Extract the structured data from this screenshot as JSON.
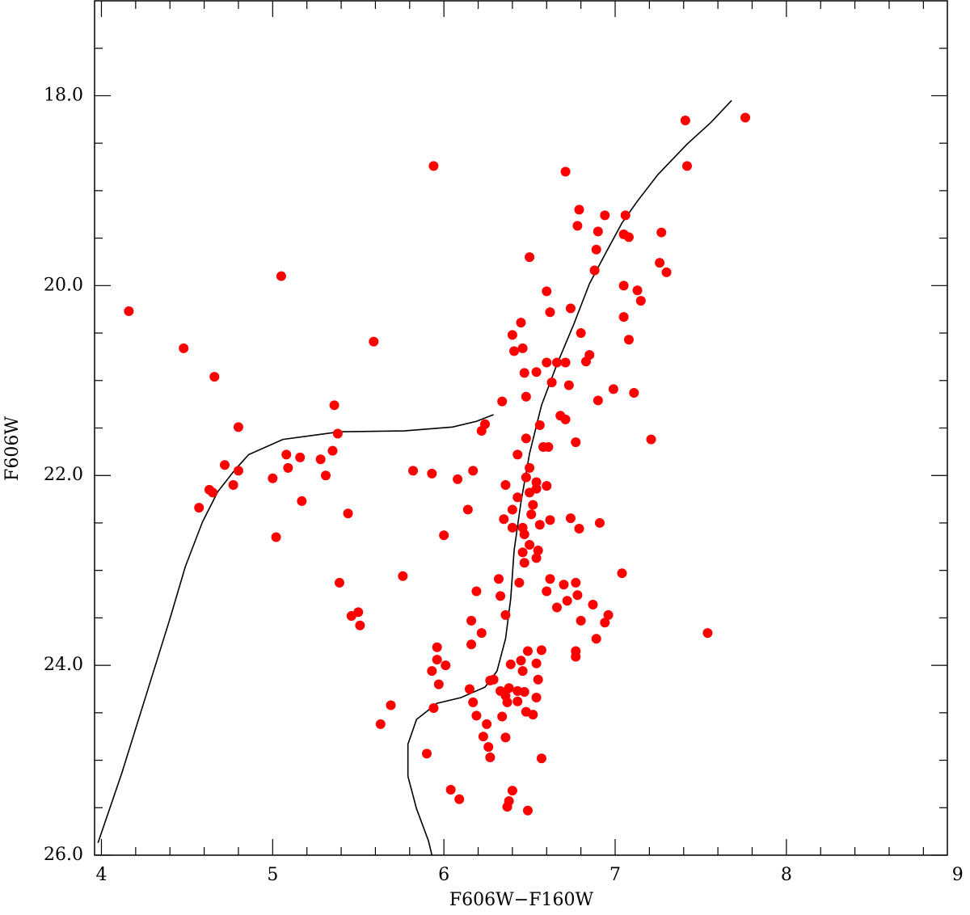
{
  "chart_data": {
    "type": "scatter",
    "xlabel": "F606W−F160W",
    "ylabel": "F606W",
    "xlim": [
      3.96,
      8.94
    ],
    "ylim": [
      26,
      17
    ],
    "xticks": [
      4,
      5,
      6,
      7,
      8,
      9
    ],
    "yticks": [
      {
        "value": 18,
        "label": "18.0"
      },
      {
        "value": 20,
        "label": "20.0"
      },
      {
        "value": 22,
        "label": "22.0"
      },
      {
        "value": 24,
        "label": "24.0"
      },
      {
        "value": 26,
        "label": "26.0"
      }
    ],
    "xminor": [
      4.2,
      4.4,
      4.6,
      4.8,
      5.2,
      5.4,
      5.6,
      5.8,
      6.2,
      6.4,
      6.6,
      6.8,
      7.2,
      7.4,
      7.6,
      7.8,
      8.2,
      8.4,
      8.6,
      8.8
    ],
    "yminor": [
      17.5,
      18.5,
      19,
      19.5,
      20.5,
      21,
      21.5,
      22.5,
      23,
      23.5,
      24.5,
      25,
      25.5
    ],
    "points": {
      "color": "#ff0000",
      "x": [
        4.16,
        4.48,
        4.66,
        5.05,
        5.59,
        5.94,
        7.41,
        7.76,
        7.42,
        6.71,
        6.79,
        6.94,
        7.06,
        6.78,
        6.9,
        7.05,
        7.08,
        7.27,
        6.89,
        6.5,
        6.88,
        7.26,
        7.3,
        7.05,
        7.13,
        7.15,
        6.6,
        6.74,
        6.62,
        6.45,
        7.05,
        6.8,
        6.4,
        6.46,
        6.41,
        7.08,
        6.85,
        6.83,
        6.6,
        6.71,
        6.66,
        6.54,
        6.47,
        6.63,
        6.73,
        6.99,
        7.11,
        6.48,
        6.9,
        6.34,
        5.36,
        4.8,
        6.56,
        6.68,
        6.71,
        6.24,
        6.22,
        5.38,
        6.77,
        6.48,
        6.61,
        6.58,
        7.21,
        5.35,
        6.43,
        5.08,
        5.16,
        5.28,
        4.72,
        4.8,
        5.09,
        5.0,
        5.31,
        4.77,
        4.63,
        4.65,
        4.57,
        5.17,
        5.02,
        5.44,
        5.39,
        5.46,
        5.5,
        5.51,
        5.76,
        5.69,
        5.63,
        5.82,
        5.93,
        6.08,
        6.17,
        6.14,
        6.0,
        6.36,
        6.48,
        6.43,
        6.54,
        6.5,
        6.6,
        6.4,
        6.52,
        6.51,
        6.35,
        6.46,
        6.47,
        6.56,
        6.62,
        6.74,
        6.79,
        6.91,
        6.5,
        6.55,
        6.46,
        6.47,
        6.54,
        6.4,
        6.32,
        6.44,
        6.62,
        6.6,
        6.66,
        6.7,
        6.77,
        6.78,
        6.72,
        6.87,
        6.96,
        6.94,
        6.89,
        6.8,
        7.04,
        7.54,
        6.19,
        6.33,
        6.16,
        6.22,
        6.36,
        6.16,
        5.96,
        5.93,
        5.97,
        5.96,
        6.01,
        5.94,
        5.9,
        6.04,
        6.09,
        6.15,
        6.17,
        6.19,
        6.25,
        6.23,
        6.27,
        6.27,
        6.33,
        6.37,
        6.39,
        6.45,
        6.49,
        6.57,
        6.43,
        6.46,
        6.47,
        6.48,
        6.52,
        6.54,
        6.55,
        6.54,
        6.77,
        6.77,
        6.57,
        6.36,
        6.38,
        6.34,
        6.36,
        6.4,
        6.38,
        6.37,
        6.49,
        6.43,
        6.29,
        6.26,
        6.5,
        6.54
      ],
      "y": [
        20.27,
        20.66,
        20.96,
        19.9,
        20.59,
        18.74,
        18.26,
        18.23,
        18.74,
        18.8,
        19.2,
        19.26,
        19.26,
        19.37,
        19.43,
        19.46,
        19.49,
        19.44,
        19.62,
        19.7,
        19.84,
        19.76,
        19.86,
        20.0,
        20.05,
        20.16,
        20.06,
        20.24,
        20.28,
        20.39,
        20.33,
        20.5,
        20.52,
        20.66,
        20.69,
        20.57,
        20.73,
        20.8,
        20.81,
        20.81,
        20.81,
        20.91,
        20.92,
        21.02,
        21.05,
        21.09,
        21.13,
        21.17,
        21.21,
        21.22,
        21.26,
        21.49,
        21.47,
        21.37,
        21.41,
        21.46,
        21.53,
        21.56,
        21.65,
        21.61,
        21.7,
        21.7,
        21.62,
        21.74,
        21.78,
        21.78,
        21.81,
        21.83,
        21.89,
        21.95,
        21.92,
        22.03,
        22.0,
        22.1,
        22.15,
        22.18,
        22.34,
        22.27,
        22.65,
        22.4,
        23.13,
        23.48,
        23.44,
        23.58,
        23.06,
        24.42,
        24.62,
        21.95,
        21.98,
        22.04,
        21.95,
        22.36,
        22.63,
        22.1,
        22.02,
        22.23,
        22.07,
        22.18,
        22.11,
        22.36,
        22.31,
        22.41,
        22.46,
        22.55,
        22.62,
        22.52,
        22.47,
        22.45,
        22.56,
        22.5,
        22.73,
        22.79,
        22.81,
        22.92,
        22.87,
        22.55,
        23.09,
        23.13,
        23.09,
        23.22,
        23.39,
        23.15,
        23.13,
        23.26,
        23.32,
        23.36,
        23.47,
        23.55,
        23.72,
        23.53,
        23.03,
        23.66,
        23.22,
        23.27,
        23.53,
        23.66,
        23.47,
        23.78,
        23.81,
        24.06,
        24.2,
        23.94,
        24.0,
        24.45,
        24.93,
        25.31,
        25.41,
        24.25,
        24.39,
        24.53,
        24.62,
        24.75,
        24.97,
        24.16,
        24.27,
        24.39,
        23.99,
        23.95,
        23.85,
        23.84,
        24.27,
        24.06,
        24.28,
        24.49,
        24.52,
        24.34,
        24.15,
        23.98,
        23.85,
        23.91,
        24.98,
        24.32,
        24.24,
        24.54,
        24.76,
        25.32,
        25.43,
        25.49,
        25.53,
        24.38,
        24.15,
        24.86,
        21.92,
        22.14
      ]
    },
    "lines": [
      {
        "color": "#000000",
        "x": [
          3.98,
          4.12,
          4.26,
          4.4,
          4.49,
          4.59,
          4.68,
          4.78,
          4.86,
          5.06,
          5.39,
          5.77,
          6.05,
          6.19,
          6.29
        ],
        "y": [
          25.87,
          25.13,
          24.32,
          23.51,
          22.96,
          22.49,
          22.17,
          21.94,
          21.78,
          21.62,
          21.54,
          21.53,
          21.49,
          21.43,
          21.36
        ]
      },
      {
        "color": "#000000",
        "x": [
          7.68,
          7.56,
          7.42,
          7.25,
          7.13,
          7.04,
          6.95,
          6.85,
          6.76,
          6.66,
          6.57,
          6.5,
          6.45,
          6.41,
          6.39,
          6.36,
          6.31,
          6.24,
          6.1,
          5.96,
          5.84,
          5.79,
          5.79,
          5.84,
          5.91,
          5.93
        ],
        "y": [
          18.05,
          18.28,
          18.51,
          18.83,
          19.11,
          19.34,
          19.64,
          19.98,
          20.4,
          20.83,
          21.26,
          21.77,
          22.28,
          22.79,
          23.3,
          23.72,
          24.06,
          24.23,
          24.34,
          24.4,
          24.57,
          24.83,
          25.17,
          25.51,
          25.85,
          26.0
        ]
      }
    ]
  }
}
